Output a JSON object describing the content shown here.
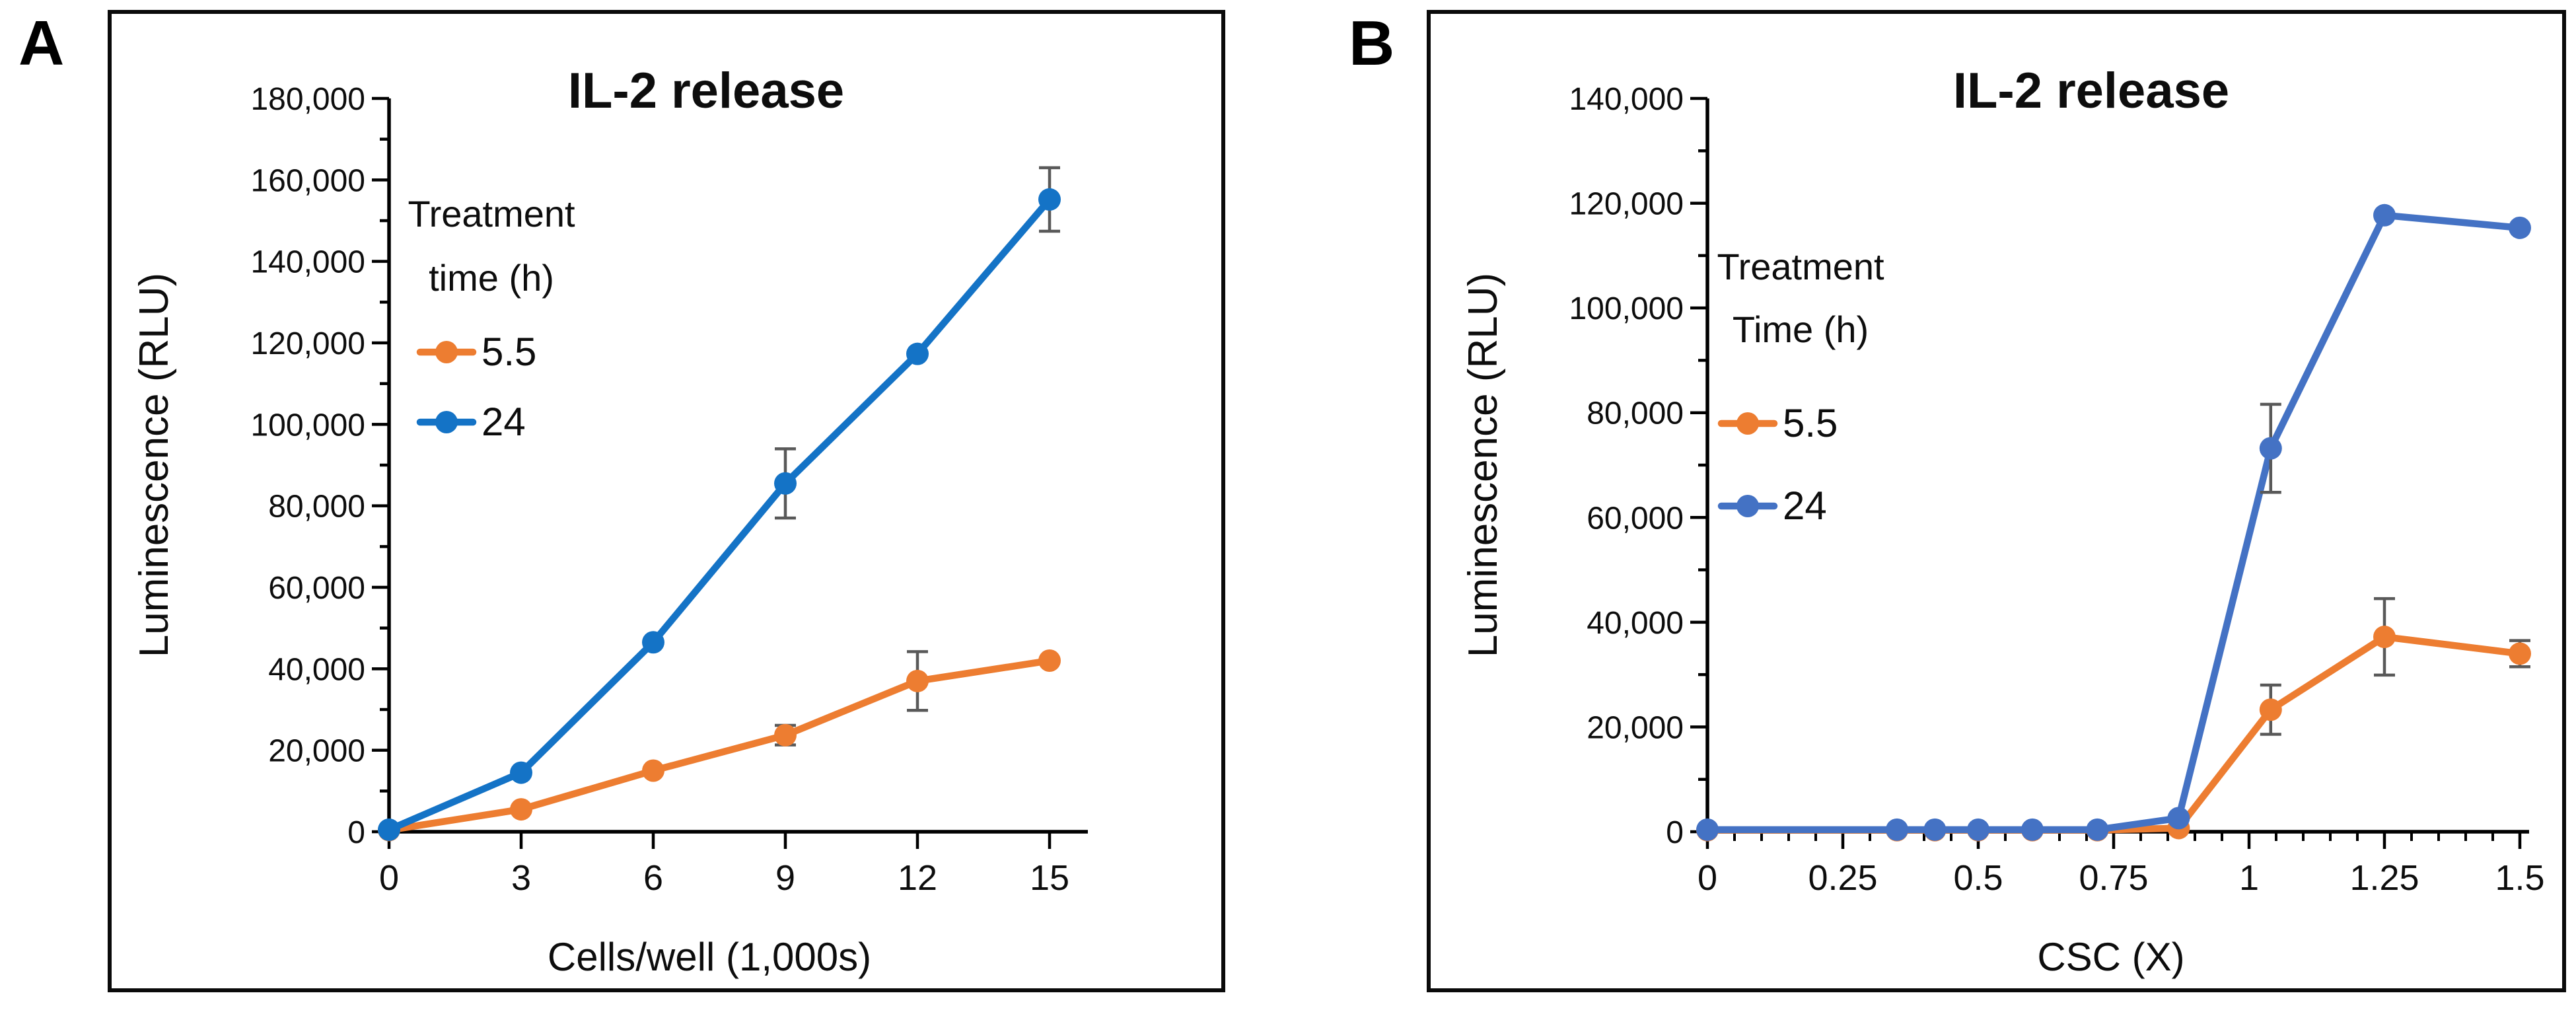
{
  "figure": {
    "background": "#ffffff",
    "border_color": "#0a0a0a",
    "axis_color": "#000000",
    "error_bar_color": "#595959",
    "panels": [
      {
        "label": "A"
      },
      {
        "label": "B"
      }
    ]
  },
  "chart_data": [
    {
      "type": "line",
      "panel": "A",
      "title": "IL-2 release",
      "xlabel": "Cells/well (1,000s)",
      "ylabel": "Luminescence (RLU)",
      "xlim": [
        0,
        15
      ],
      "ylim": [
        0,
        180000
      ],
      "grid": false,
      "x_tick_values": [
        0,
        3,
        6,
        9,
        12,
        15
      ],
      "x_tick_labels": [
        "0",
        "3",
        "6",
        "9",
        "12",
        "15"
      ],
      "x_minor_step": null,
      "y_tick_values": [
        0,
        20000,
        40000,
        60000,
        80000,
        100000,
        120000,
        140000,
        160000,
        180000
      ],
      "y_tick_labels": [
        "0",
        "20,000",
        "40,000",
        "60,000",
        "80,000",
        "100,000",
        "120,000",
        "140,000",
        "160,000",
        "180,000"
      ],
      "y_minor_step": 10000,
      "legend": {
        "title_lines": [
          "Treatment",
          "time (h)"
        ],
        "position": "upper-left-inside"
      },
      "x": [
        0,
        3,
        6,
        9,
        12,
        15
      ],
      "series": [
        {
          "name": "5.5",
          "color": "#ED7D31",
          "values": [
            400,
            5500,
            15000,
            23700,
            37000,
            42000
          ],
          "errors": [
            0,
            0,
            0,
            2400,
            7200,
            0
          ]
        },
        {
          "name": "24",
          "color": "#1473C6",
          "values": [
            500,
            14500,
            46500,
            85500,
            117300,
            155200
          ],
          "errors": [
            0,
            0,
            0,
            8500,
            0,
            7800
          ]
        }
      ]
    },
    {
      "type": "line",
      "panel": "B",
      "title": "IL-2 release",
      "xlabel": "CSC (X)",
      "ylabel": "Luminescence (RLU)",
      "xlim": [
        0,
        1.5
      ],
      "ylim": [
        0,
        140000
      ],
      "grid": false,
      "x_tick_values": [
        0,
        0.25,
        0.5,
        0.75,
        1,
        1.25,
        1.5
      ],
      "x_tick_labels": [
        "0",
        "0.25",
        "0.5",
        "0.75",
        "1",
        "1.25",
        "1.5"
      ],
      "x_minor_step": 0.05,
      "y_tick_values": [
        0,
        20000,
        40000,
        60000,
        80000,
        100000,
        120000,
        140000
      ],
      "y_tick_labels": [
        "0",
        "20,000",
        "40,000",
        "60,000",
        "80,000",
        "100,000",
        "120,000",
        "140,000"
      ],
      "y_minor_step": 10000,
      "legend": {
        "title_lines": [
          "Treatment",
          "Time (h)"
        ],
        "position": "upper-left-inside"
      },
      "x": [
        0,
        0.35,
        0.42,
        0.5,
        0.6,
        0.72,
        0.87,
        1.04,
        1.25,
        1.5
      ],
      "series": [
        {
          "name": "5.5",
          "color": "#ED7D31",
          "values": [
            300,
            300,
            300,
            300,
            300,
            300,
            700,
            23300,
            37200,
            34000
          ],
          "errors": [
            0,
            0,
            0,
            0,
            0,
            0,
            0,
            4700,
            7300,
            2500
          ]
        },
        {
          "name": "24",
          "color": "#4472C4",
          "values": [
            400,
            400,
            400,
            400,
            400,
            400,
            2600,
            73200,
            117700,
            115300
          ],
          "errors": [
            0,
            0,
            0,
            0,
            0,
            0,
            0,
            8400,
            0,
            0
          ]
        }
      ]
    }
  ]
}
